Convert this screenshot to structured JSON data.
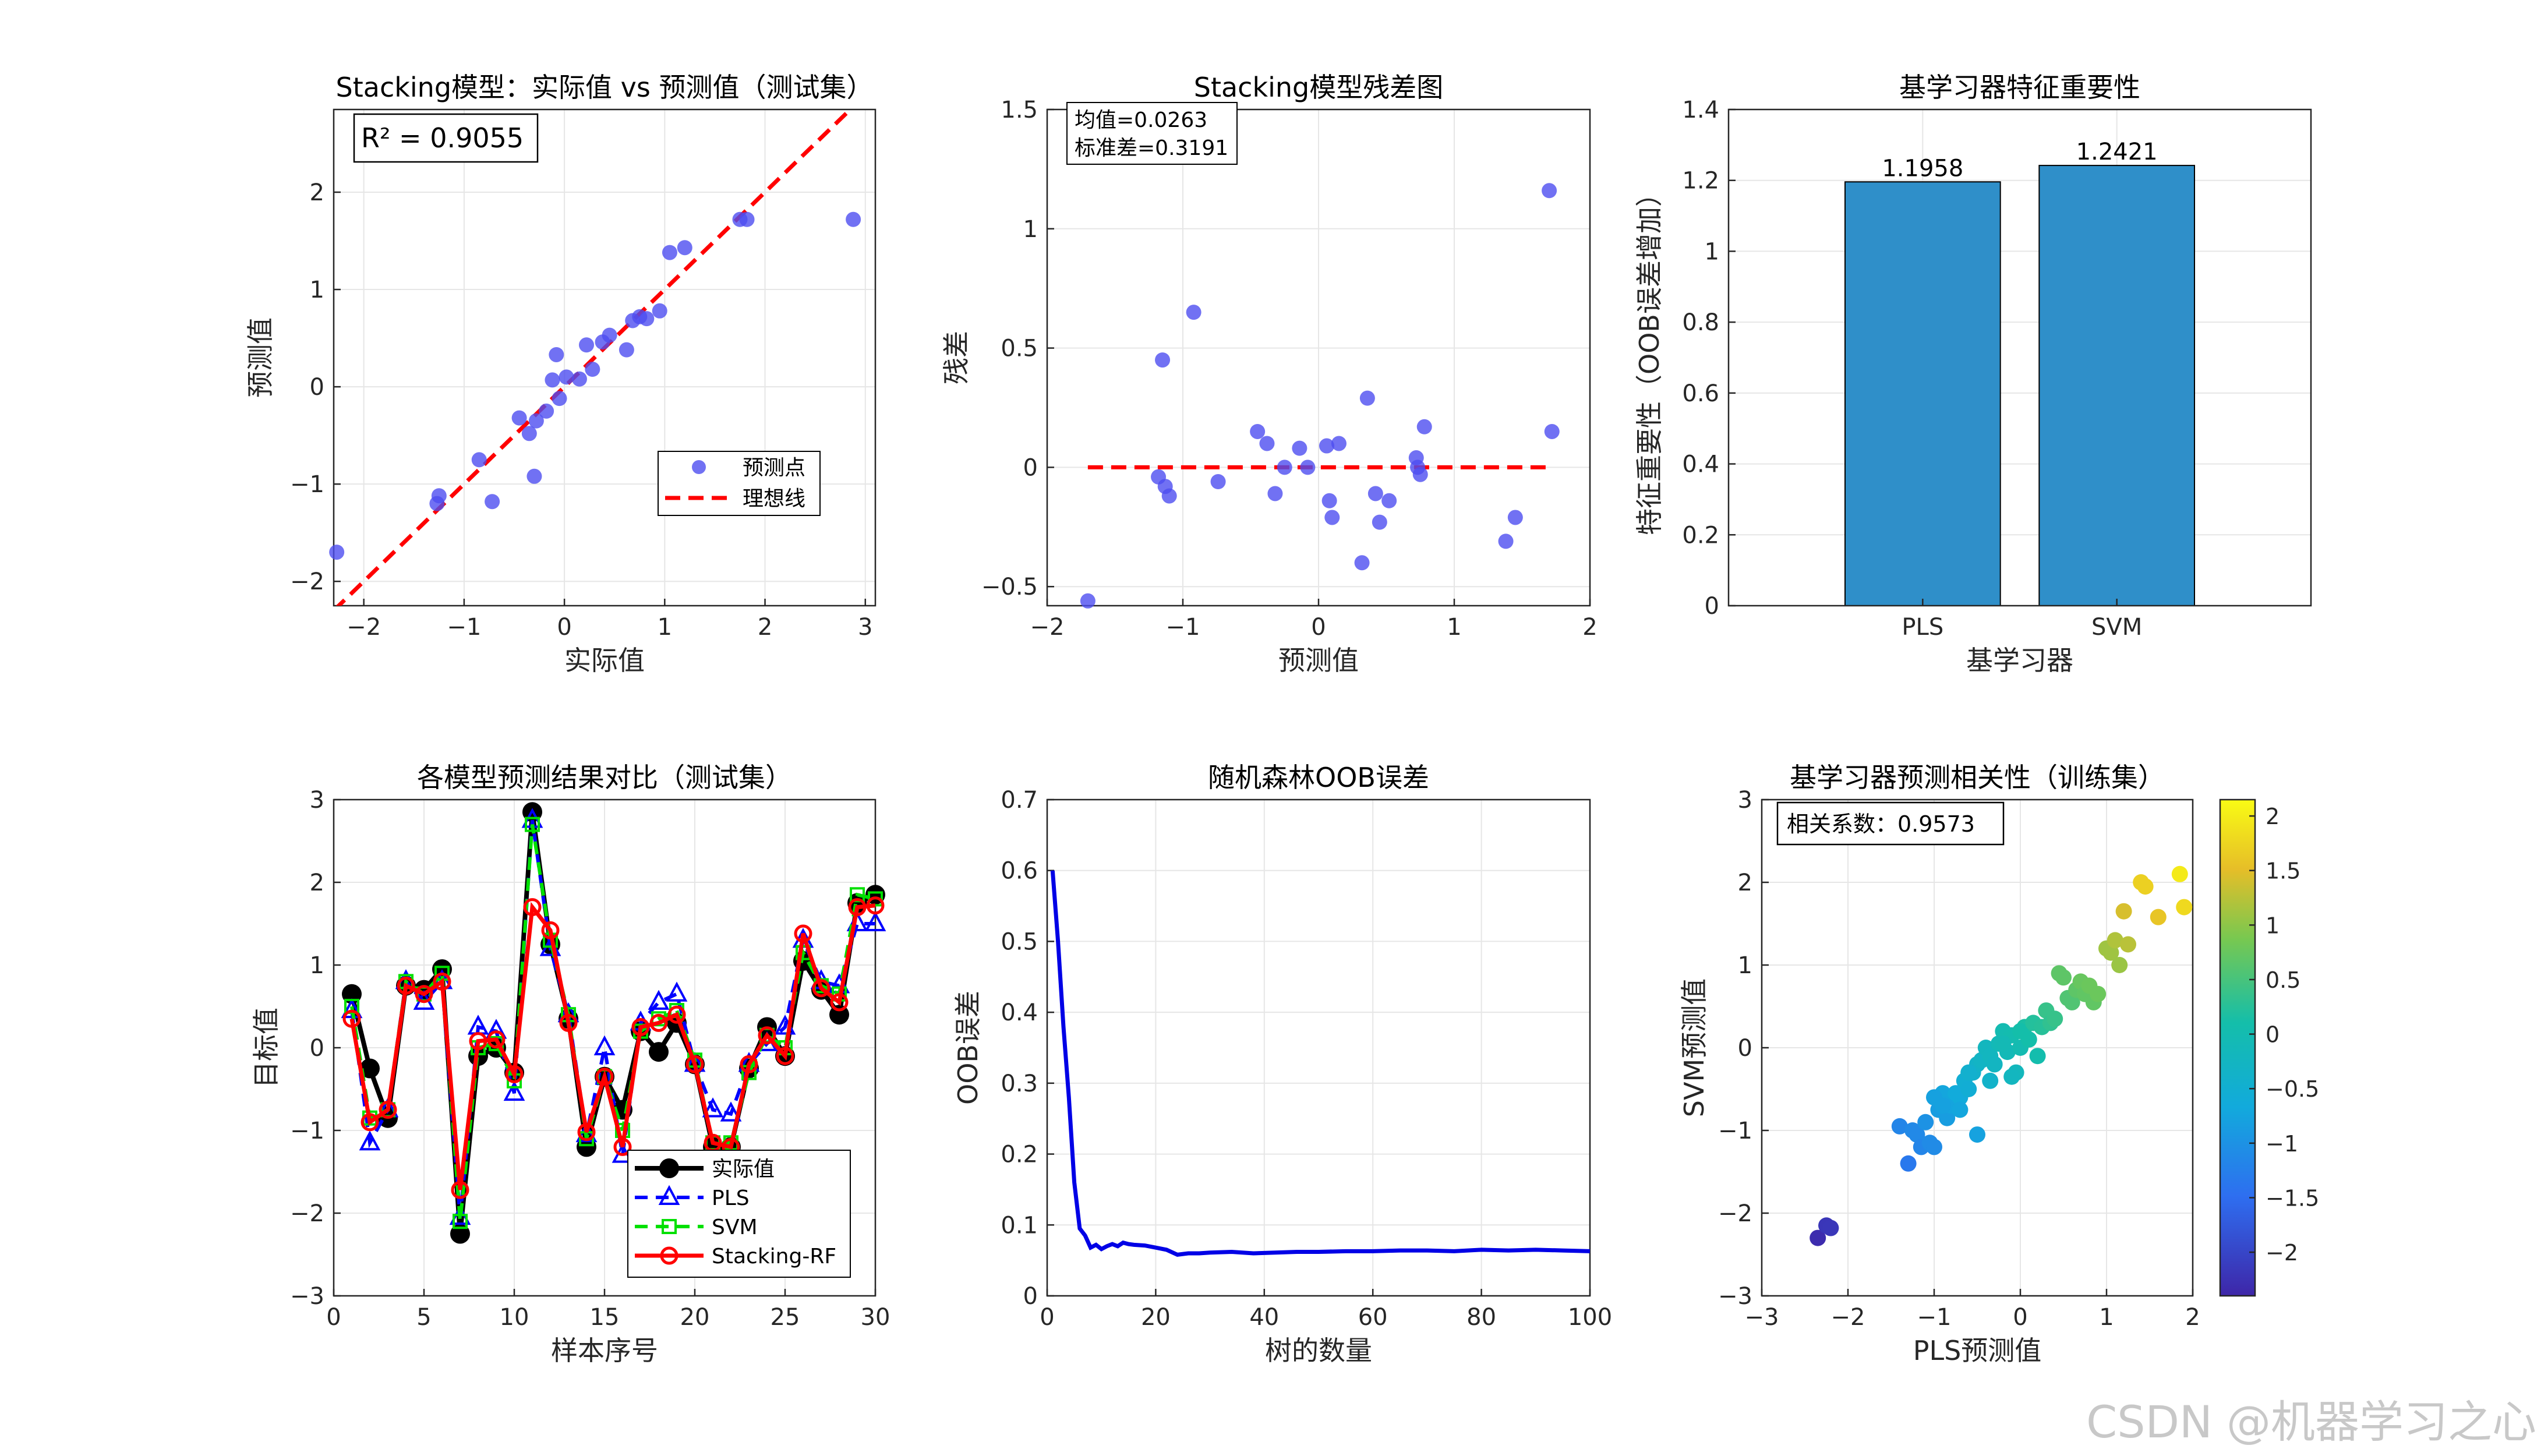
{
  "watermark": "CSDN @机器学习之心",
  "colors": {
    "blue_pts": "#4d4df0",
    "red_line": "#ff0000",
    "bar": "#2f8fc9",
    "grid": "#e6e6e6",
    "axis": "#262626"
  },
  "chart_data": [
    {
      "id": "p1",
      "type": "scatter",
      "title": "Stacking模型：实际值 vs 预测值（测试集）",
      "xlabel": "实际值",
      "ylabel": "预测值",
      "xlim": [
        -2.3,
        3.1
      ],
      "ylim": [
        -2.25,
        2.85
      ],
      "xticks": [
        -2,
        -1,
        0,
        1,
        2,
        3
      ],
      "yticks": [
        -2,
        -1,
        0,
        1,
        2
      ],
      "annotation": "R² = 0.9055",
      "legend": [
        "预测点",
        "理想线"
      ],
      "legend_position": "bottom-right",
      "x": [
        -2.27,
        -1.27,
        -1.25,
        -0.85,
        -0.72,
        -0.45,
        -0.35,
        -0.3,
        -0.28,
        -0.18,
        -0.12,
        -0.08,
        -0.05,
        0.02,
        0.15,
        0.22,
        0.28,
        0.38,
        0.45,
        0.62,
        0.68,
        0.75,
        0.82,
        0.95,
        1.05,
        1.2,
        1.75,
        1.82,
        2.88
      ],
      "y": [
        -1.7,
        -1.2,
        -1.12,
        -0.75,
        -1.18,
        -0.32,
        -0.48,
        -0.92,
        -0.35,
        -0.25,
        0.07,
        0.33,
        -0.12,
        0.1,
        0.08,
        0.43,
        0.18,
        0.46,
        0.53,
        0.38,
        0.68,
        0.72,
        0.7,
        0.78,
        1.38,
        1.43,
        1.72,
        1.72,
        1.72
      ]
    },
    {
      "id": "p2",
      "type": "scatter",
      "title": "Stacking模型残差图",
      "xlabel": "预测值",
      "ylabel": "残差",
      "xlim": [
        -2,
        2
      ],
      "ylim": [
        -0.58,
        1.5
      ],
      "xticks": [
        -2,
        -1,
        0,
        1,
        2
      ],
      "yticks": [
        -0.5,
        0,
        0.5,
        1,
        1.5
      ],
      "annotation": [
        "均值=0.0263",
        "标准差=0.3191"
      ],
      "x": [
        -1.7,
        -1.18,
        -1.15,
        -1.13,
        -1.1,
        -0.92,
        -0.74,
        -0.45,
        -0.38,
        -0.32,
        -0.25,
        -0.14,
        -0.08,
        0.06,
        0.08,
        0.1,
        0.15,
        0.32,
        0.36,
        0.42,
        0.45,
        0.52,
        0.72,
        0.73,
        0.75,
        0.78,
        1.38,
        1.45,
        1.7,
        1.72
      ],
      "y": [
        -0.56,
        -0.04,
        0.45,
        -0.08,
        -0.12,
        0.65,
        -0.06,
        0.15,
        0.1,
        -0.11,
        0.0,
        0.08,
        0.0,
        0.09,
        -0.14,
        -0.21,
        0.1,
        -0.4,
        0.29,
        -0.11,
        -0.23,
        -0.14,
        0.04,
        0.0,
        -0.03,
        0.17,
        -0.31,
        -0.21,
        1.16,
        0.15
      ]
    },
    {
      "id": "p3",
      "type": "bar",
      "title": "基学习器特征重要性",
      "xlabel": "基学习器",
      "ylabel": "特征重要性（OOB误差增加）",
      "categories": [
        "PLS",
        "SVM"
      ],
      "values": [
        1.1958,
        1.2421
      ],
      "value_labels": [
        "1.1958",
        "1.2421"
      ],
      "ylim": [
        0,
        1.4
      ],
      "yticks": [
        0,
        0.2,
        0.4,
        0.6,
        0.8,
        1,
        1.2,
        1.4
      ]
    },
    {
      "id": "p4",
      "type": "line",
      "title": "各模型预测结果对比（测试集）",
      "xlabel": "样本序号",
      "ylabel": "目标值",
      "xlim": [
        0,
        30
      ],
      "ylim": [
        -3,
        3
      ],
      "xticks": [
        0,
        5,
        10,
        15,
        20,
        25,
        30
      ],
      "yticks": [
        -3,
        -2,
        -1,
        0,
        1,
        2,
        3
      ],
      "x": [
        1,
        2,
        3,
        4,
        5,
        6,
        7,
        8,
        9,
        10,
        11,
        12,
        13,
        14,
        15,
        16,
        17,
        18,
        19,
        20,
        21,
        22,
        23,
        24,
        25,
        26,
        27,
        28,
        29,
        30
      ],
      "legend_position": "bottom-right",
      "series": [
        {
          "name": "实际值",
          "values": [
            0.65,
            -0.25,
            -0.85,
            0.75,
            0.7,
            0.95,
            -2.25,
            -0.1,
            0.0,
            -0.3,
            2.85,
            1.25,
            0.35,
            -1.2,
            -0.35,
            -0.75,
            0.2,
            -0.05,
            0.3,
            -0.2,
            -1.2,
            -1.2,
            -0.25,
            0.25,
            -0.1,
            1.05,
            0.7,
            0.4,
            1.75,
            1.85
          ]
        },
        {
          "name": "PLS",
          "values": [
            0.45,
            -1.15,
            -0.75,
            0.8,
            0.55,
            0.8,
            -2.05,
            0.25,
            0.2,
            -0.55,
            2.75,
            1.2,
            0.4,
            -1.05,
            0.0,
            -1.3,
            0.3,
            0.55,
            0.65,
            -0.2,
            -0.75,
            -0.8,
            -0.2,
            0.05,
            0.25,
            1.3,
            0.8,
            0.75,
            1.5,
            1.5
          ]
        },
        {
          "name": "SVM",
          "values": [
            0.5,
            -0.85,
            -0.75,
            0.8,
            0.65,
            0.9,
            -2.1,
            0.0,
            0.05,
            -0.4,
            2.7,
            1.3,
            0.4,
            -1.1,
            -0.35,
            -1.0,
            0.2,
            0.35,
            0.45,
            -0.15,
            -1.15,
            -1.15,
            -0.3,
            0.15,
            0.0,
            1.15,
            0.75,
            0.65,
            1.85,
            1.8
          ]
        },
        {
          "name": "Stacking-RF",
          "values": [
            0.35,
            -0.9,
            -0.75,
            0.75,
            0.65,
            0.8,
            -1.72,
            0.08,
            0.1,
            -0.32,
            1.7,
            1.42,
            0.3,
            -1.02,
            -0.35,
            -1.2,
            0.25,
            0.3,
            0.4,
            -0.2,
            -1.15,
            -1.2,
            -0.2,
            0.15,
            -0.1,
            1.38,
            0.72,
            0.55,
            1.7,
            1.72
          ]
        }
      ]
    },
    {
      "id": "p5",
      "type": "line",
      "title": "随机森林OOB误差",
      "xlabel": "树的数量",
      "ylabel": "OOB误差",
      "xlim": [
        0,
        100
      ],
      "ylim": [
        0,
        0.7
      ],
      "xticks": [
        0,
        20,
        40,
        60,
        80,
        100
      ],
      "yticks": [
        0,
        0.1,
        0.2,
        0.3,
        0.4,
        0.5,
        0.6,
        0.7
      ],
      "x": [
        1,
        2,
        3,
        4,
        5,
        6,
        7,
        8,
        9,
        10,
        11,
        12,
        13,
        14,
        15,
        16,
        18,
        20,
        22,
        24,
        26,
        28,
        30,
        34,
        38,
        42,
        46,
        50,
        55,
        60,
        65,
        70,
        75,
        80,
        85,
        90,
        95,
        100
      ],
      "y": [
        0.6,
        0.5,
        0.38,
        0.28,
        0.16,
        0.095,
        0.085,
        0.068,
        0.072,
        0.066,
        0.07,
        0.073,
        0.07,
        0.075,
        0.073,
        0.072,
        0.071,
        0.068,
        0.065,
        0.058,
        0.06,
        0.06,
        0.061,
        0.062,
        0.06,
        0.061,
        0.062,
        0.062,
        0.063,
        0.063,
        0.064,
        0.064,
        0.063,
        0.065,
        0.064,
        0.065,
        0.064,
        0.063
      ]
    },
    {
      "id": "p6",
      "type": "scatter",
      "title": "基学习器预测相关性（训练集）",
      "xlabel": "PLS预测值",
      "ylabel": "SVM预测值",
      "xlim": [
        -3,
        2
      ],
      "ylim": [
        -3,
        3
      ],
      "xticks": [
        -3,
        -2,
        -1,
        0,
        1,
        2
      ],
      "yticks": [
        -3,
        -2,
        -1,
        0,
        1,
        2,
        3
      ],
      "annotation": "相关系数：0.9573",
      "colorbar": {
        "ticks": [
          -2,
          -1.5,
          -1,
          -0.5,
          0,
          0.5,
          1,
          1.5,
          2
        ],
        "range": [
          -2.4,
          2.15
        ]
      },
      "x": [
        -2.35,
        -2.25,
        -2.2,
        -1.4,
        -1.3,
        -1.25,
        -1.2,
        -1.15,
        -1.1,
        -1.05,
        -1.0,
        -0.95,
        -0.9,
        -0.85,
        -0.8,
        -0.75,
        -0.7,
        -0.65,
        -0.6,
        -0.55,
        -0.5,
        -0.45,
        -0.4,
        -0.35,
        -0.3,
        -0.25,
        -0.2,
        -0.15,
        -0.1,
        -0.05,
        0.0,
        0.05,
        -1.0,
        -0.9,
        -0.7,
        -0.6,
        -0.5,
        -0.35,
        -0.3,
        -0.2,
        -0.1,
        0.0,
        0.1,
        0.15,
        0.2,
        0.25,
        0.3,
        0.35,
        0.4,
        0.45,
        0.5,
        0.55,
        0.6,
        0.65,
        0.7,
        0.75,
        0.8,
        0.85,
        0.9,
        1.0,
        1.05,
        1.1,
        1.15,
        1.2,
        1.25,
        1.4,
        1.45,
        1.6,
        1.85,
        1.9
      ],
      "y": [
        -2.3,
        -2.15,
        -2.18,
        -0.95,
        -1.4,
        -1.0,
        -1.05,
        -1.2,
        -0.9,
        -1.15,
        -1.2,
        -0.75,
        -0.55,
        -0.85,
        -0.7,
        -0.55,
        -0.6,
        -0.4,
        -0.5,
        -0.3,
        -0.2,
        -0.15,
        0.0,
        -0.1,
        -0.2,
        0.05,
        0.2,
        -0.05,
        0.15,
        -0.3,
        0.0,
        0.25,
        -0.6,
        -0.7,
        -0.75,
        -0.3,
        -1.05,
        -0.4,
        -0.2,
        0.05,
        -0.35,
        0.2,
        0.1,
        0.3,
        -0.1,
        0.25,
        0.45,
        0.3,
        0.35,
        0.9,
        0.85,
        0.6,
        0.55,
        0.7,
        0.8,
        0.65,
        0.75,
        0.55,
        0.65,
        1.2,
        1.15,
        1.3,
        1.0,
        1.65,
        1.25,
        2.0,
        1.95,
        1.58,
        2.1,
        1.7
      ]
    }
  ]
}
